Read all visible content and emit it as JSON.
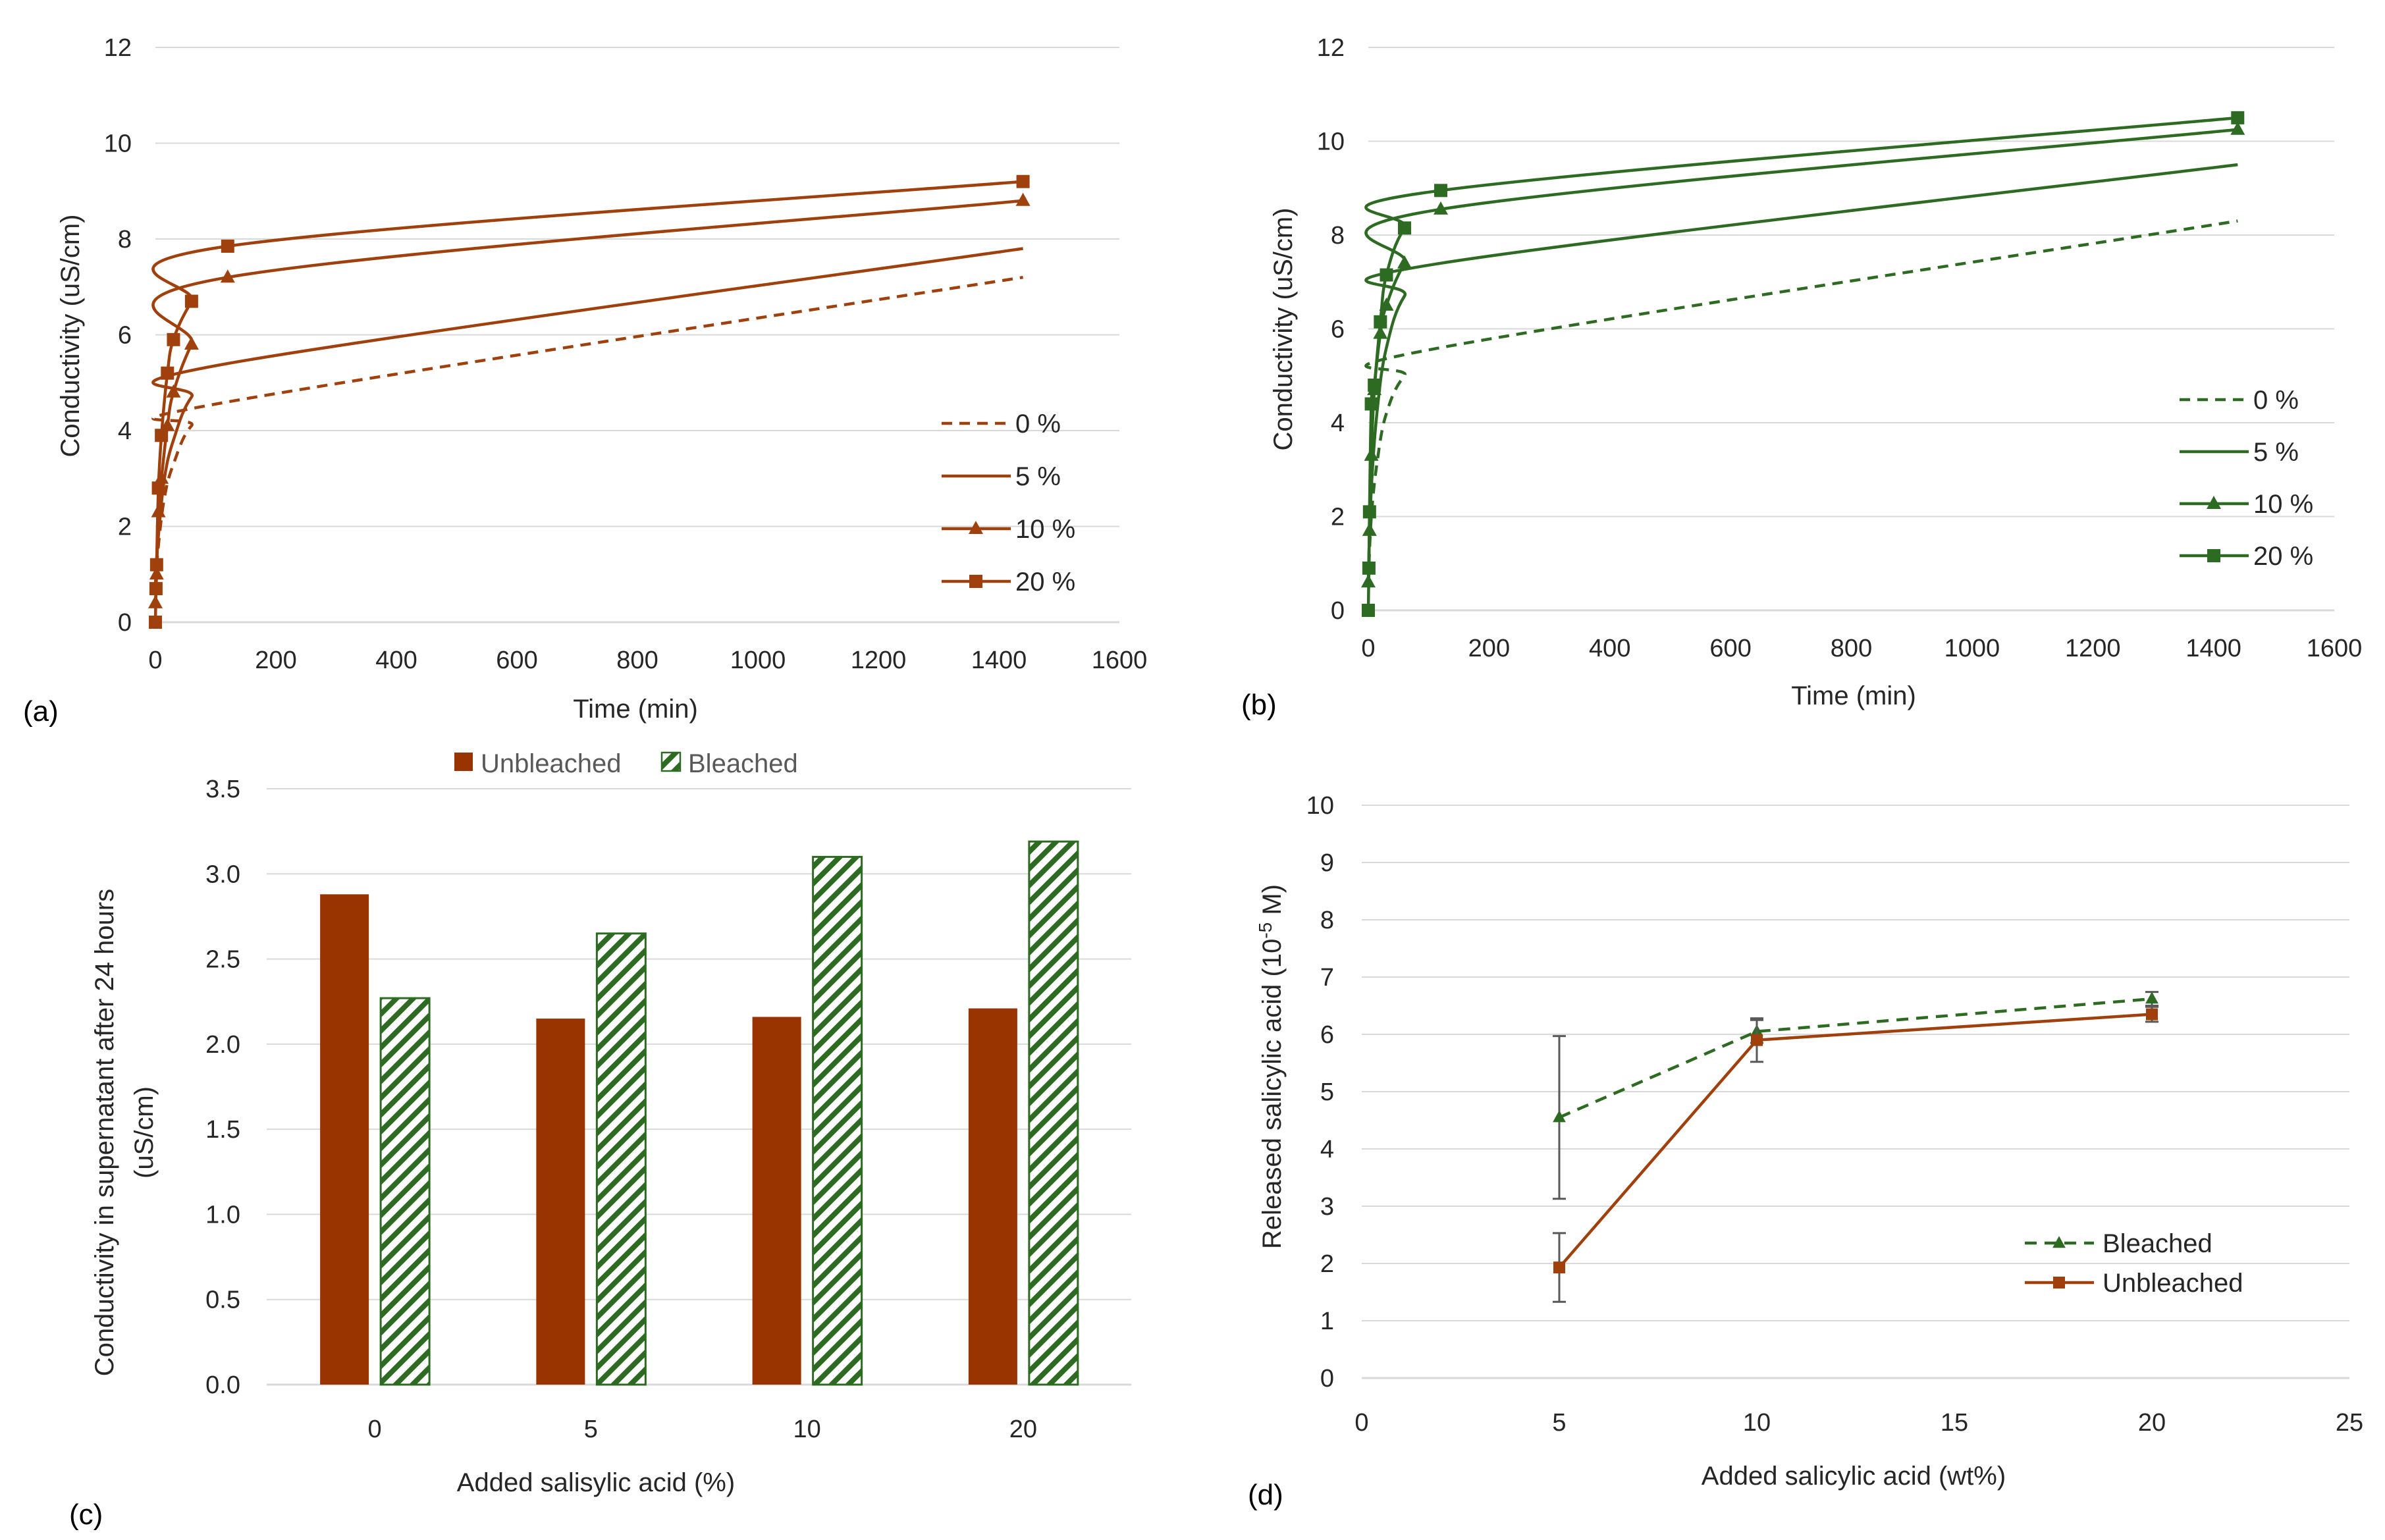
{
  "colors": {
    "brown": "#A0410D",
    "bar_brown": "#993300",
    "green": "#2E6B22",
    "error": "#595959",
    "grid": "#d9d9d9"
  },
  "panel_labels": [
    "(a)",
    "(b)",
    "(c)",
    "(d)"
  ],
  "chart_data": [
    {
      "id": "a",
      "type": "line",
      "xlabel": "Time (min)",
      "ylabel": "Conductivity (uS/cm)",
      "xlim": [
        0,
        1600
      ],
      "ylim": [
        0,
        12
      ],
      "xticks": [
        0,
        200,
        400,
        600,
        800,
        1000,
        1200,
        1400,
        1600
      ],
      "yticks": [
        0,
        2,
        4,
        6,
        8,
        10,
        12
      ],
      "series": [
        {
          "name": "0 %",
          "style": "dashed",
          "marker": "none",
          "points": [
            [
              0,
              0.8
            ],
            [
              5,
              1.6
            ],
            [
              15,
              2.6
            ],
            [
              30,
              3.3
            ],
            [
              60,
              4.1
            ],
            [
              120,
              4.6
            ],
            [
              1440,
              7.2
            ]
          ]
        },
        {
          "name": "5 %",
          "style": "solid",
          "marker": "none",
          "points": [
            [
              0,
              0.9
            ],
            [
              5,
              1.8
            ],
            [
              15,
              3.0
            ],
            [
              30,
              3.8
            ],
            [
              60,
              4.7
            ],
            [
              120,
              5.4
            ],
            [
              1440,
              7.8
            ]
          ]
        },
        {
          "name": "10 %",
          "style": "solid",
          "marker": "triangle",
          "points": [
            [
              0,
              0.4
            ],
            [
              2,
              1.0
            ],
            [
              5,
              2.3
            ],
            [
              10,
              3.0
            ],
            [
              20,
              4.1
            ],
            [
              30,
              4.8
            ],
            [
              60,
              5.8
            ],
            [
              120,
              7.2
            ],
            [
              1440,
              8.8
            ]
          ]
        },
        {
          "name": "20 %",
          "style": "solid",
          "marker": "square",
          "points": [
            [
              0,
              0.0
            ],
            [
              1,
              0.7
            ],
            [
              2,
              1.2
            ],
            [
              5,
              2.8
            ],
            [
              10,
              3.9
            ],
            [
              20,
              5.2
            ],
            [
              30,
              5.9
            ],
            [
              60,
              6.7
            ],
            [
              120,
              7.85
            ],
            [
              1440,
              9.2
            ]
          ]
        }
      ]
    },
    {
      "id": "b",
      "type": "line",
      "xlabel": "Time (min)",
      "ylabel": "Conductivity (uS/cm)",
      "xlim": [
        0,
        1600
      ],
      "ylim": [
        0,
        12
      ],
      "xticks": [
        0,
        200,
        400,
        600,
        800,
        1000,
        1200,
        1400,
        1600
      ],
      "yticks": [
        0,
        2,
        4,
        6,
        8,
        10,
        12
      ],
      "series": [
        {
          "name": "0 %",
          "style": "dashed",
          "marker": "none",
          "points": [
            [
              0,
              0.6
            ],
            [
              5,
              2.0
            ],
            [
              15,
              3.2
            ],
            [
              30,
              4.2
            ],
            [
              60,
              5.0
            ],
            [
              120,
              5.6
            ],
            [
              1440,
              8.3
            ]
          ]
        },
        {
          "name": "5 %",
          "style": "solid",
          "marker": "none",
          "points": [
            [
              0,
              0.7
            ],
            [
              5,
              2.6
            ],
            [
              15,
              4.3
            ],
            [
              30,
              5.6
            ],
            [
              60,
              6.7
            ],
            [
              120,
              7.4
            ],
            [
              1440,
              9.5
            ]
          ]
        },
        {
          "name": "10 %",
          "style": "solid",
          "marker": "triangle",
          "points": [
            [
              0,
              0.6
            ],
            [
              2,
              1.7
            ],
            [
              5,
              3.3
            ],
            [
              10,
              4.7
            ],
            [
              20,
              5.9
            ],
            [
              30,
              6.5
            ],
            [
              60,
              7.4
            ],
            [
              120,
              8.55
            ],
            [
              1440,
              10.25
            ]
          ]
        },
        {
          "name": "20 %",
          "style": "solid",
          "marker": "square",
          "points": [
            [
              0,
              0.0
            ],
            [
              1,
              0.9
            ],
            [
              2,
              2.1
            ],
            [
              5,
              4.4
            ],
            [
              10,
              4.8
            ],
            [
              20,
              6.15
            ],
            [
              30,
              7.15
            ],
            [
              60,
              8.15
            ],
            [
              120,
              8.95
            ],
            [
              1440,
              10.5
            ]
          ]
        }
      ]
    },
    {
      "id": "c",
      "type": "bar",
      "xlabel": "Added salisylic acid (%)",
      "ylabel_lines": [
        "Conductivity in supernatant after 24 hours",
        "(uS/cm)"
      ],
      "ylim": [
        0,
        3.5
      ],
      "yticks": [
        "0.0",
        "0.5",
        "1.0",
        "1.5",
        "2.0",
        "2.5",
        "3.0",
        "3.5"
      ],
      "categories": [
        "0",
        "5",
        "10",
        "20"
      ],
      "series": [
        {
          "name": "Unbleached",
          "fill": "solid",
          "values": [
            2.88,
            2.15,
            2.16,
            2.21
          ]
        },
        {
          "name": "Bleached",
          "fill": "hatched",
          "values": [
            2.27,
            2.65,
            3.1,
            3.19
          ]
        }
      ]
    },
    {
      "id": "d",
      "type": "line",
      "xlabel": "Added salicylic acid (wt%)",
      "ylabel_main": "Released salicylic acid (10",
      "ylabel_sup": "-5",
      "ylabel_end": " M)",
      "xlim": [
        0,
        25
      ],
      "ylim": [
        0,
        10
      ],
      "xticks": [
        0,
        5,
        10,
        15,
        20,
        25
      ],
      "yticks": [
        0,
        1,
        2,
        3,
        4,
        5,
        6,
        7,
        8,
        9,
        10
      ],
      "series": [
        {
          "name": "Bleached",
          "style": "dashed",
          "marker": "triangle",
          "x": [
            5,
            10,
            20
          ],
          "y": [
            4.55,
            6.05,
            6.62
          ],
          "err": [
            1.42,
            0.2,
            0.12
          ]
        },
        {
          "name": "Unbleached",
          "style": "solid",
          "marker": "square",
          "x": [
            5,
            10,
            20
          ],
          "y": [
            1.93,
            5.9,
            6.35
          ],
          "err": [
            0.6,
            0.38,
            0.13
          ]
        }
      ]
    }
  ]
}
